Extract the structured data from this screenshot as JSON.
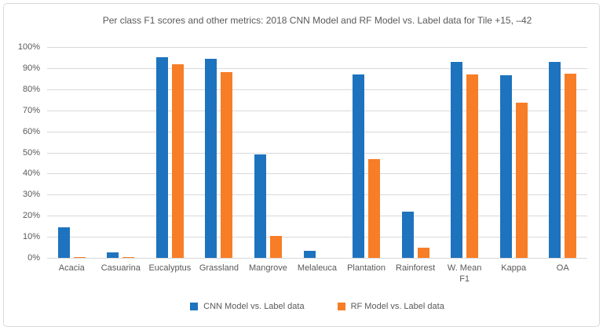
{
  "chart_data": {
    "type": "bar",
    "title": "Per class F1 scores and other metrics: 2018 CNN Model and RF Model vs. Label data for Tile +15, –42",
    "categories": [
      "Acacia",
      "Casuarina",
      "Eucalyptus",
      "Grassland",
      "Mangrove",
      "Melaleuca",
      "Plantation",
      "Rainforest",
      "W. Mean\nF1",
      "Kappa",
      "OA"
    ],
    "series": [
      {
        "name": "CNN Model vs. Label data",
        "color": "#1E73BE",
        "values": [
          14.5,
          2.5,
          95,
          94.5,
          49,
          3.5,
          87,
          22,
          93,
          86.5,
          93
        ]
      },
      {
        "name": "RF Model vs. Label data",
        "color": "#F87D27",
        "values": [
          0.5,
          0.5,
          92,
          88,
          10.5,
          0,
          47,
          5,
          87,
          73.5,
          87.5
        ]
      }
    ],
    "xlabel": "",
    "ylabel": "",
    "ylim": [
      0,
      100
    ],
    "yticks": [
      "0%",
      "10%",
      "20%",
      "30%",
      "40%",
      "50%",
      "60%",
      "70%",
      "80%",
      "90%",
      "100%"
    ],
    "grid": true,
    "legend_position": "bottom"
  },
  "styles": {
    "text_color": "#595959",
    "grid_color": "#D9D9D9",
    "frame_color": "#D9D9D9",
    "background": "#FFFFFF"
  }
}
